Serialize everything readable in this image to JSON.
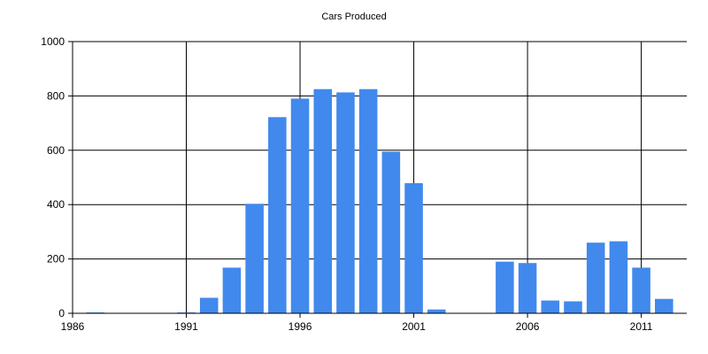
{
  "chart_data": {
    "type": "bar",
    "title": "Cars Produced",
    "xlabel": "",
    "ylabel": "",
    "x": [
      1987,
      1991,
      1992,
      1993,
      1994,
      1995,
      1996,
      1997,
      1998,
      1999,
      2000,
      2001,
      2002,
      2005,
      2006,
      2007,
      2008,
      2009,
      2010,
      2011,
      2012
    ],
    "values": [
      3,
      3,
      57,
      168,
      403,
      722,
      790,
      825,
      813,
      825,
      595,
      479,
      14,
      190,
      185,
      47,
      44,
      260,
      265,
      168,
      53
    ],
    "xlim": [
      1986,
      2013
    ],
    "ylim": [
      0,
      1000
    ],
    "x_ticks": [
      1986,
      1991,
      1996,
      2001,
      2006,
      2011
    ],
    "y_ticks": [
      0,
      200,
      400,
      600,
      800,
      1000
    ],
    "grid": true,
    "legend": "none",
    "bar_color": "#4189ED"
  }
}
